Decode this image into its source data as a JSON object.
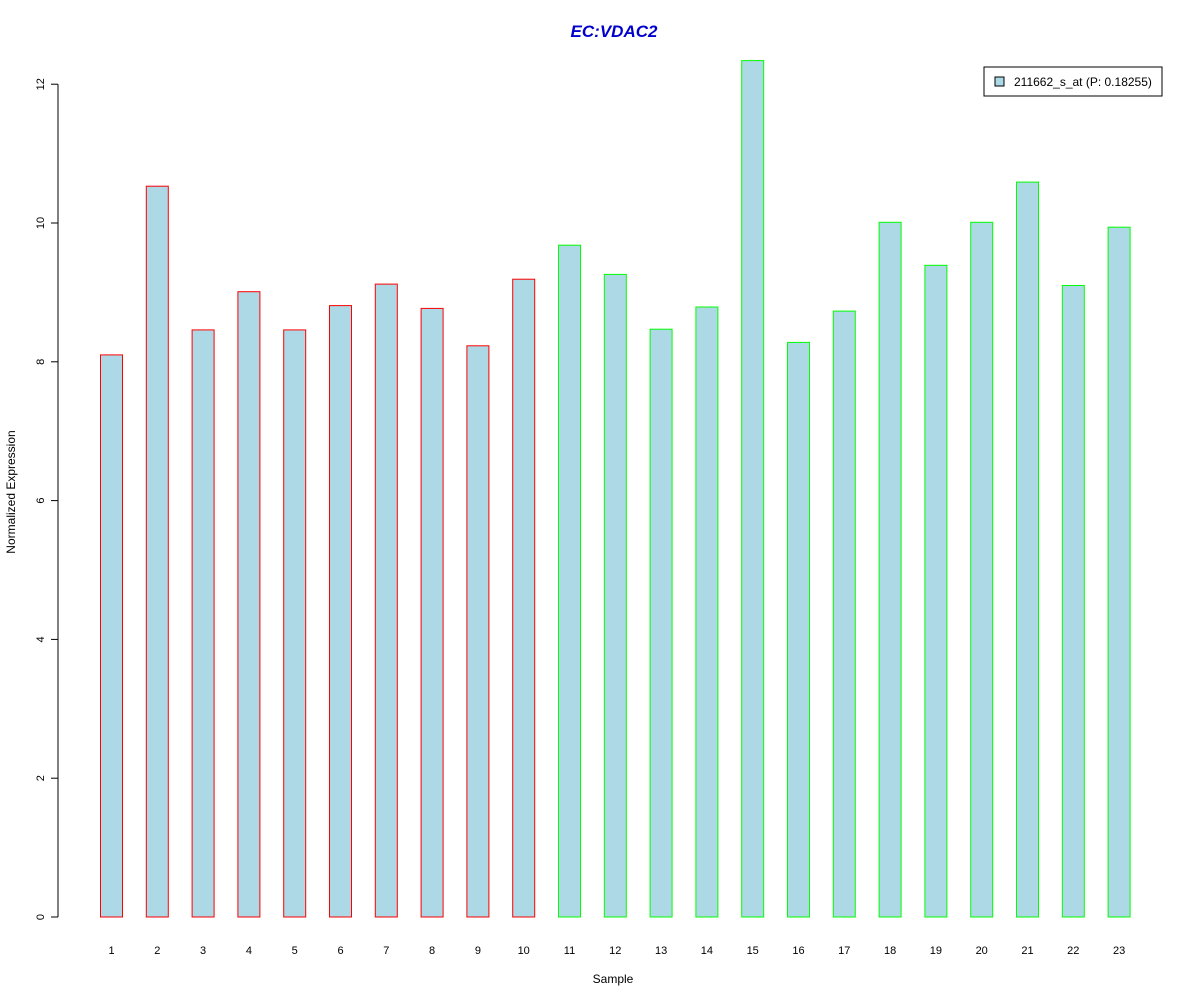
{
  "chart_data": {
    "type": "bar",
    "title": "EC:VDAC2",
    "xlabel": "Sample",
    "ylabel": "Normalized Expression",
    "categories": [
      "1",
      "2",
      "3",
      "4",
      "5",
      "6",
      "7",
      "8",
      "9",
      "10",
      "11",
      "12",
      "13",
      "14",
      "15",
      "16",
      "17",
      "18",
      "19",
      "20",
      "21",
      "22",
      "23"
    ],
    "series": [
      {
        "name": "211662_s_at (P: 0.18255)",
        "values": [
          8.1,
          10.53,
          8.46,
          9.01,
          8.46,
          8.81,
          9.12,
          8.77,
          8.23,
          9.19,
          9.68,
          9.26,
          8.47,
          8.79,
          12.34,
          8.28,
          8.73,
          10.01,
          9.39,
          10.01,
          10.59,
          9.1,
          9.94
        ]
      }
    ],
    "group_border_colors": [
      "#ff0000",
      "#ff0000",
      "#ff0000",
      "#ff0000",
      "#ff0000",
      "#ff0000",
      "#ff0000",
      "#ff0000",
      "#ff0000",
      "#ff0000",
      "#00ff00",
      "#00ff00",
      "#00ff00",
      "#00ff00",
      "#00ff00",
      "#00ff00",
      "#00ff00",
      "#00ff00",
      "#00ff00",
      "#00ff00",
      "#00ff00",
      "#00ff00",
      "#00ff00"
    ],
    "bar_fill": "#add8e6",
    "title_color": "#0000cc",
    "yticks": [
      0,
      2,
      4,
      6,
      8,
      10,
      12
    ],
    "ylim": [
      0,
      12.4
    ],
    "grid": false,
    "legend_position": "top-right"
  }
}
